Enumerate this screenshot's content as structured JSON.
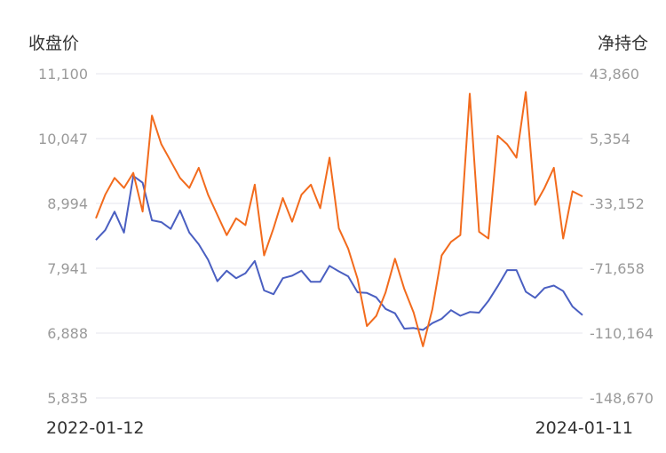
{
  "chart_data": {
    "type": "line",
    "y_left_label": "收盘价",
    "y_right_label": "净持仓",
    "x_start_label": "2022-01-12",
    "x_end_label": "2024-01-11",
    "y_left_ticks": [
      "11,100",
      "10,047",
      "8,994",
      "7,941",
      "6,888",
      "5,835"
    ],
    "y_right_ticks": [
      "43,860",
      "5,354",
      "-33,152",
      "-71,658",
      "-110,164",
      "-148,670"
    ],
    "y_left_range": [
      5835,
      11100
    ],
    "y_right_range": [
      -148670,
      43860
    ],
    "grid": true,
    "x_range": [
      "2022-01-12",
      "2024-01-11"
    ],
    "series": [
      {
        "axis": "left",
        "color": "#4a5fc1",
        "x": [
          "2022-01-12",
          "2022-01-26",
          "2022-02-09",
          "2022-02-23",
          "2022-03-09",
          "2022-03-23",
          "2022-04-06",
          "2022-04-20",
          "2022-05-04",
          "2022-05-18",
          "2022-06-01",
          "2022-06-15",
          "2022-06-29",
          "2022-07-13",
          "2022-07-27",
          "2022-08-10",
          "2022-08-24",
          "2022-09-07",
          "2022-09-21",
          "2022-10-05",
          "2022-10-19",
          "2022-11-02",
          "2022-11-16",
          "2022-11-30",
          "2022-12-14",
          "2022-12-28",
          "2023-01-11",
          "2023-01-25",
          "2023-02-08",
          "2023-02-22",
          "2023-03-08",
          "2023-03-22",
          "2023-04-05",
          "2023-04-19",
          "2023-05-03",
          "2023-05-17",
          "2023-05-31",
          "2023-06-14",
          "2023-06-28",
          "2023-07-12",
          "2023-07-26",
          "2023-08-09",
          "2023-08-23",
          "2023-09-06",
          "2023-09-20",
          "2023-10-04",
          "2023-10-18",
          "2023-11-01",
          "2023-11-15",
          "2023-11-29",
          "2023-12-13",
          "2023-12-27",
          "2024-01-11"
        ],
        "values": [
          8400,
          8560,
          8860,
          8520,
          9440,
          9330,
          8720,
          8690,
          8580,
          8880,
          8520,
          8330,
          8080,
          7730,
          7900,
          7780,
          7860,
          8060,
          7580,
          7520,
          7780,
          7820,
          7900,
          7720,
          7720,
          7980,
          7890,
          7810,
          7550,
          7540,
          7470,
          7280,
          7210,
          6960,
          6970,
          6940,
          7050,
          7120,
          7260,
          7170,
          7230,
          7220,
          7410,
          7650,
          7910,
          7910,
          7560,
          7460,
          7620,
          7660,
          7570,
          7320,
          7180
        ]
      },
      {
        "axis": "right",
        "color": "#f26b1d",
        "x": [
          "2022-01-12",
          "2022-01-26",
          "2022-02-09",
          "2022-02-23",
          "2022-03-09",
          "2022-03-23",
          "2022-04-06",
          "2022-04-20",
          "2022-05-04",
          "2022-05-18",
          "2022-06-01",
          "2022-06-15",
          "2022-06-29",
          "2022-07-13",
          "2022-07-27",
          "2022-08-10",
          "2022-08-24",
          "2022-09-07",
          "2022-09-21",
          "2022-10-05",
          "2022-10-19",
          "2022-11-02",
          "2022-11-16",
          "2022-11-30",
          "2022-12-14",
          "2022-12-28",
          "2023-01-11",
          "2023-01-25",
          "2023-02-08",
          "2023-02-22",
          "2023-03-08",
          "2023-03-22",
          "2023-04-05",
          "2023-04-19",
          "2023-05-03",
          "2023-05-17",
          "2023-05-31",
          "2023-06-14",
          "2023-06-28",
          "2023-07-12",
          "2023-07-26",
          "2023-08-09",
          "2023-08-23",
          "2023-09-06",
          "2023-09-20",
          "2023-10-04",
          "2023-10-18",
          "2023-11-01",
          "2023-11-15",
          "2023-11-29",
          "2023-12-13",
          "2023-12-27",
          "2024-01-11"
        ],
        "values": [
          -42000,
          -28000,
          -18000,
          -24000,
          -15000,
          -38000,
          19000,
          2000,
          -8000,
          -18000,
          -24000,
          -12000,
          -28000,
          -40000,
          -52000,
          -42000,
          -46000,
          -22000,
          -64000,
          -48000,
          -30000,
          -44000,
          -28000,
          -22000,
          -36000,
          -6000,
          -48000,
          -60000,
          -78000,
          -106000,
          -100000,
          -86000,
          -66000,
          -84000,
          -98000,
          -118000,
          -96000,
          -64000,
          -56000,
          -52000,
          32000,
          -50000,
          -54000,
          7000,
          2000,
          -6000,
          33000,
          -34000,
          -24000,
          -12000,
          -54000,
          -26000,
          -29000
        ]
      }
    ]
  }
}
